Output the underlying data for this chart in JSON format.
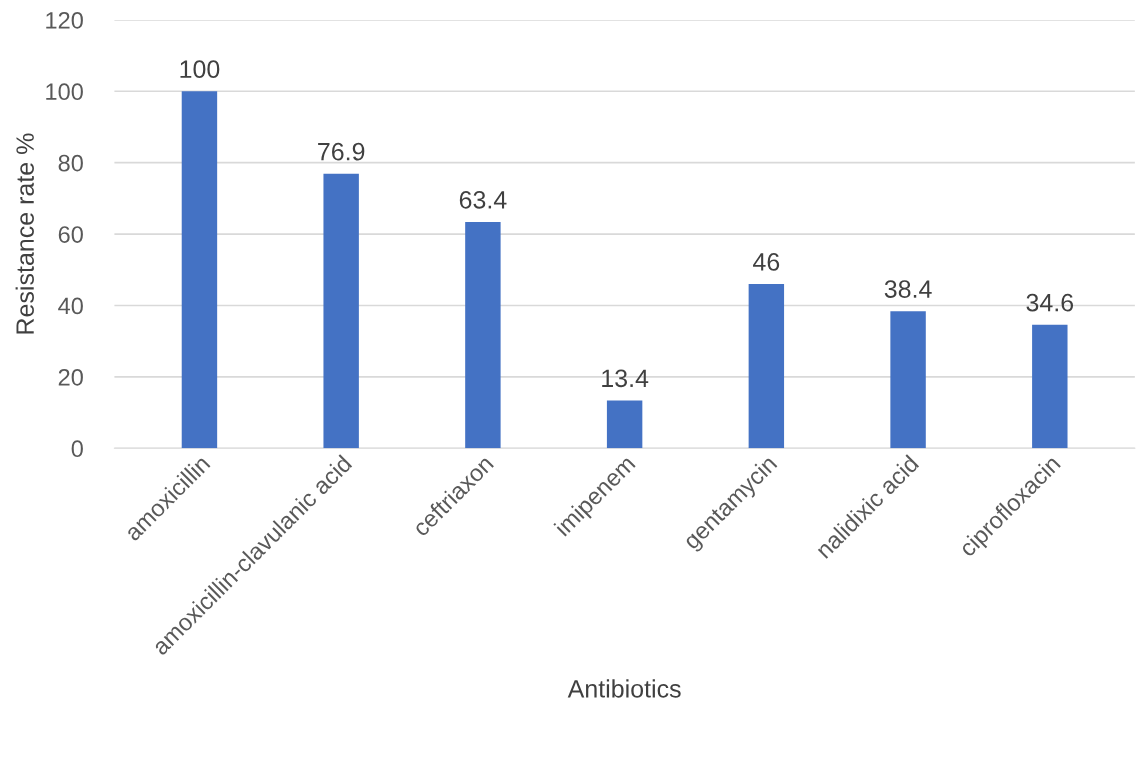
{
  "chart_data": {
    "type": "bar",
    "xlabel": "Antibiotics",
    "ylabel": "Resistance rate %",
    "categories": [
      "amoxicillin",
      "amoxicillin-clavulanic acid",
      "ceftriaxon",
      "imipenem",
      "gentamycin",
      "nalidixic acid",
      "ciprofloxacin"
    ],
    "values": [
      100,
      76.9,
      63.4,
      13.4,
      46,
      38.4,
      34.6
    ],
    "color": "#4472c4",
    "ylim": [
      0,
      120
    ],
    "yticks": [
      0,
      20,
      40,
      60,
      80,
      100,
      120
    ],
    "grid": "y",
    "data_labels": true
  }
}
